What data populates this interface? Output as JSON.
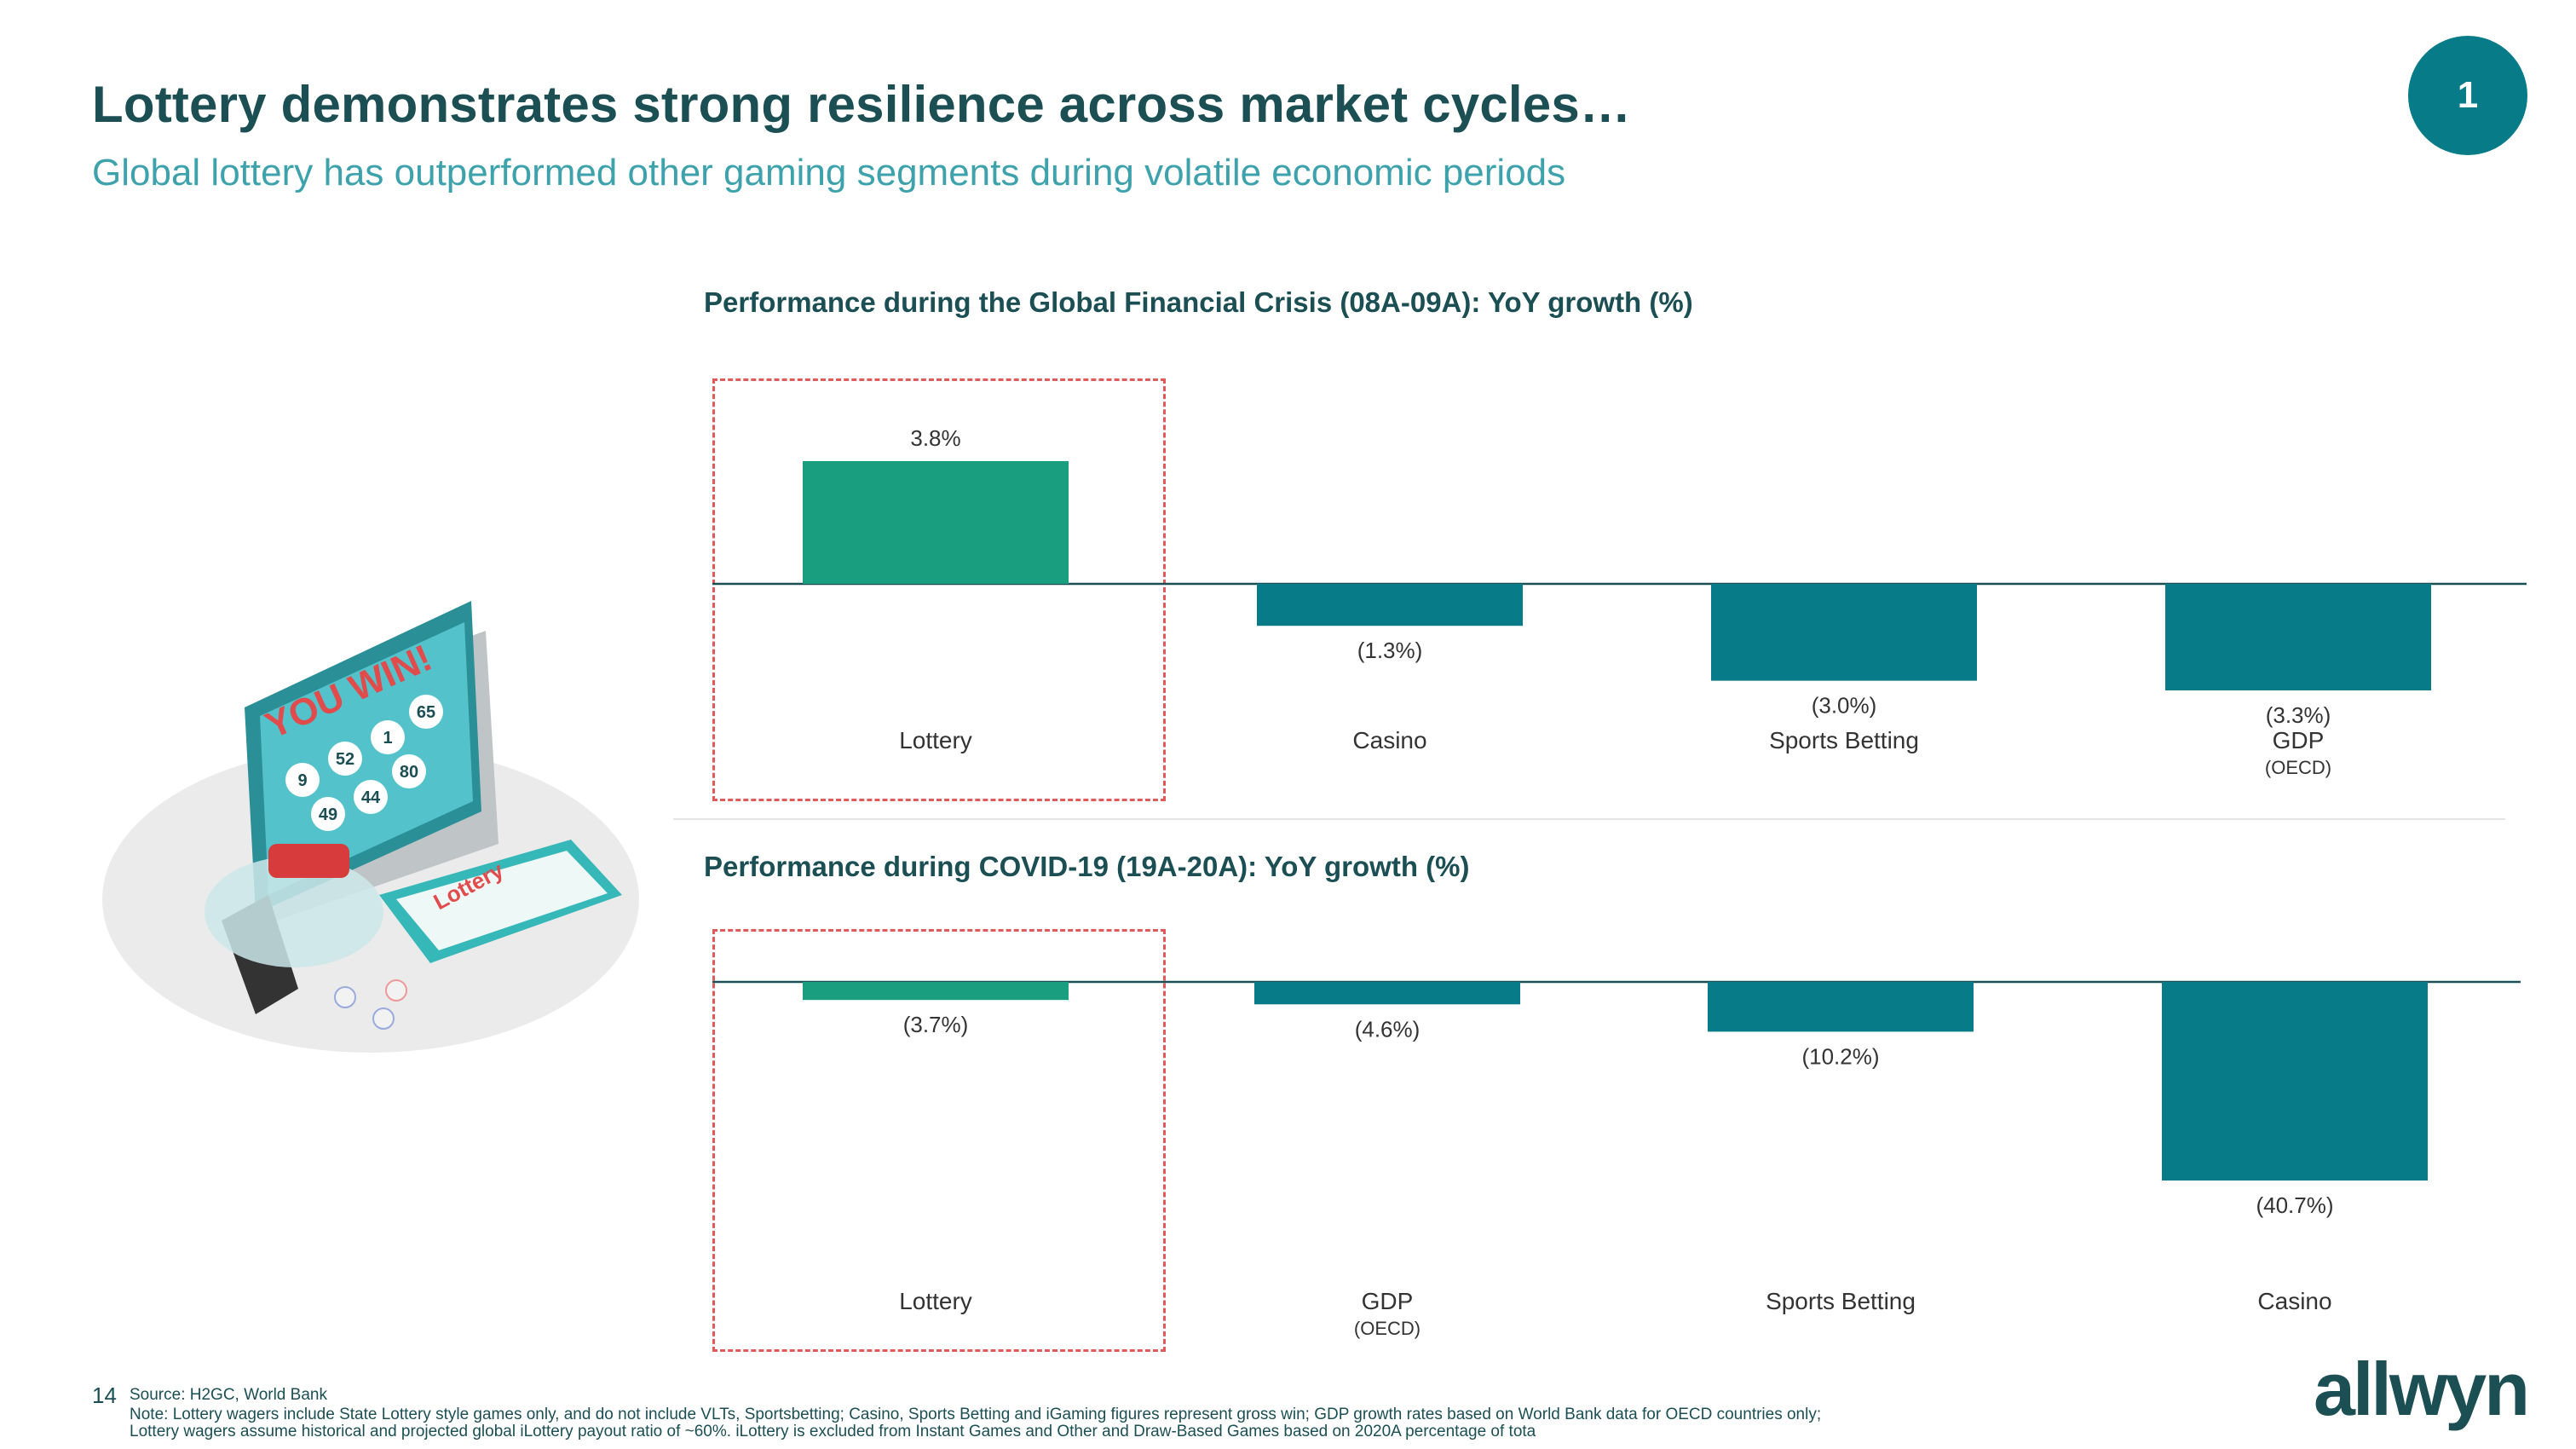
{
  "header": {
    "title": "Lottery demonstrates strong resilience across market cycles…",
    "subtitle": "Global lottery has outperformed other gaming segments during volatile economic periods",
    "badge": "1"
  },
  "colors": {
    "highlight_bar": "#1a9e80",
    "bar": "#087b89",
    "title": "#1b4f54",
    "subtitle": "#3ea2ad"
  },
  "chart_data": [
    {
      "type": "bar",
      "title": "Performance during the Global Financial Crisis (08A-09A): YoY growth (%)",
      "categories": [
        "Lottery",
        "Casino",
        "Sports Betting",
        "GDP"
      ],
      "category_sublabels": [
        "",
        "",
        "",
        "(OECD)"
      ],
      "values": [
        3.8,
        -1.3,
        -3.0,
        -3.3
      ],
      "value_labels": [
        "3.8%",
        "(1.3%)",
        "(3.0%)",
        "(3.3%)"
      ],
      "highlight_category": "Lottery",
      "ylim": [
        -3.3,
        3.8
      ]
    },
    {
      "type": "bar",
      "title": "Performance during COVID-19 (19A-20A): YoY growth (%)",
      "categories": [
        "Lottery",
        "GDP",
        "Sports Betting",
        "Casino"
      ],
      "category_sublabels": [
        "",
        "(OECD)",
        "",
        ""
      ],
      "values": [
        -3.7,
        -4.6,
        -10.2,
        -40.7
      ],
      "value_labels": [
        "(3.7%)",
        "(4.6%)",
        "(10.2%)",
        "(40.7%)"
      ],
      "highlight_category": "Lottery",
      "ylim": [
        -40.7,
        0
      ]
    }
  ],
  "illustration": {
    "banner_text": "YOU WIN!",
    "balls": [
      "9",
      "52",
      "1",
      "65",
      "49",
      "44",
      "80"
    ],
    "card_text": "Lottery"
  },
  "footer": {
    "page_number": "14",
    "source": "Source: H2GC, World Bank",
    "note": "Note: Lottery wagers include State Lottery style games only, and do not include VLTs, Sportsbetting; Casino, Sports Betting and iGaming figures represent gross win; GDP growth rates based on World Bank data for OECD countries only; Lottery wagers assume historical and projected global iLottery payout ratio of ~60%. iLottery is excluded from Instant Games and Other and Draw-Based Games based on 2020A percentage of tota",
    "logo": "allwyn"
  }
}
